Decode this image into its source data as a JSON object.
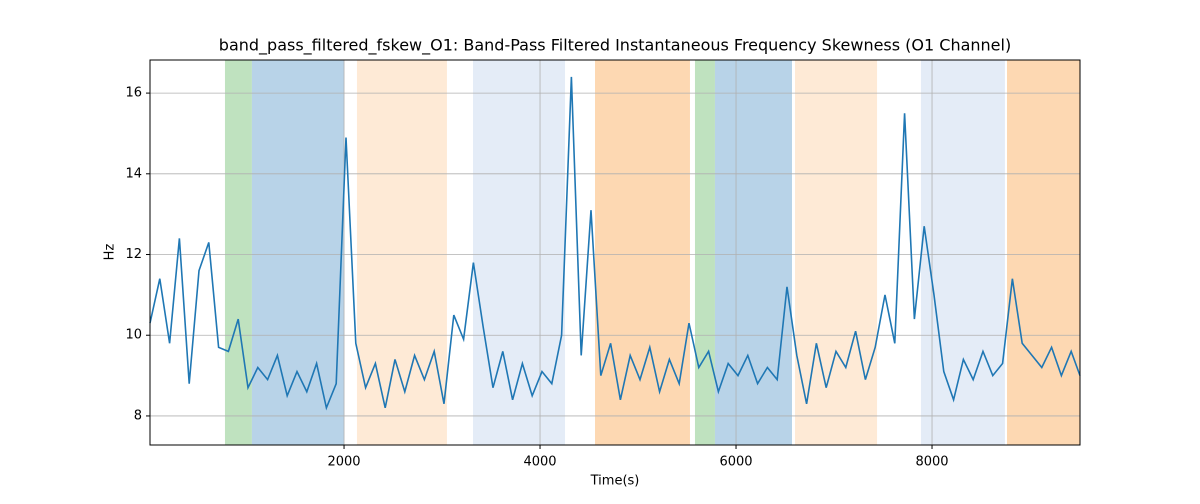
{
  "chart_data": {
    "type": "line",
    "title": "band_pass_filtered_fskew_O1: Band-Pass Filtered Instantaneous Frequency Skewness (O1 Channel)",
    "xlabel": "Time(s)",
    "ylabel": "Hz",
    "xlim": [
      20,
      9510
    ],
    "ylim": [
      7.28,
      16.82
    ],
    "xticks": [
      2000,
      4000,
      6000,
      8000
    ],
    "yticks": [
      8,
      10,
      12,
      14,
      16
    ],
    "grid": true,
    "spans": [
      {
        "start": 785,
        "end": 1060,
        "color": "#bfe2bf"
      },
      {
        "start": 1060,
        "end": 2000,
        "color": "#b8d3e8"
      },
      {
        "start": 2132,
        "end": 3050,
        "color": "#feead6"
      },
      {
        "start": 3316,
        "end": 4255,
        "color": "#e4ecf7"
      },
      {
        "start": 4561,
        "end": 5530,
        "color": "#fdd8b2"
      },
      {
        "start": 5581,
        "end": 5785,
        "color": "#bfe2bf"
      },
      {
        "start": 5785,
        "end": 6571,
        "color": "#b8d3e8"
      },
      {
        "start": 6602,
        "end": 7439,
        "color": "#feead6"
      },
      {
        "start": 7887,
        "end": 8744,
        "color": "#e4ecf7"
      },
      {
        "start": 8765,
        "end": 9510,
        "color": "#fdd8b2"
      }
    ],
    "series": [
      {
        "color": "#1f77b4",
        "x": [
          20,
          120,
          220,
          320,
          420,
          520,
          620,
          720,
          820,
          920,
          1020,
          1120,
          1220,
          1320,
          1420,
          1520,
          1620,
          1720,
          1820,
          1920,
          2020,
          2120,
          2220,
          2320,
          2420,
          2520,
          2620,
          2720,
          2820,
          2920,
          3020,
          3120,
          3220,
          3320,
          3420,
          3520,
          3620,
          3720,
          3820,
          3920,
          4020,
          4120,
          4220,
          4320,
          4420,
          4520,
          4620,
          4720,
          4820,
          4920,
          5020,
          5120,
          5220,
          5320,
          5420,
          5520,
          5620,
          5720,
          5820,
          5920,
          6020,
          6120,
          6220,
          6320,
          6420,
          6520,
          6620,
          6720,
          6820,
          6920,
          7020,
          7120,
          7220,
          7320,
          7420,
          7520,
          7620,
          7720,
          7820,
          7920,
          8020,
          8120,
          8220,
          8320,
          8420,
          8520,
          8620,
          8720,
          8820,
          8920,
          9020,
          9120,
          9220,
          9320,
          9420,
          9510
        ],
        "values": [
          10.3,
          11.4,
          9.8,
          12.4,
          8.8,
          11.6,
          12.3,
          9.7,
          9.6,
          10.4,
          8.7,
          9.2,
          8.9,
          9.5,
          8.5,
          9.1,
          8.6,
          9.3,
          8.2,
          8.8,
          14.9,
          9.8,
          8.7,
          9.3,
          8.2,
          9.4,
          8.6,
          9.5,
          8.9,
          9.6,
          8.3,
          10.5,
          9.9,
          11.8,
          10.2,
          8.7,
          9.6,
          8.4,
          9.3,
          8.5,
          9.1,
          8.8,
          10.0,
          16.4,
          9.5,
          13.1,
          9.0,
          9.8,
          8.4,
          9.5,
          8.9,
          9.7,
          8.6,
          9.4,
          8.8,
          10.3,
          9.2,
          9.6,
          8.6,
          9.3,
          9.0,
          9.5,
          8.8,
          9.2,
          8.9,
          11.2,
          9.5,
          8.3,
          9.8,
          8.7,
          9.6,
          9.2,
          10.1,
          8.9,
          9.7,
          11.0,
          9.8,
          15.5,
          10.4,
          12.7,
          11.0,
          9.1,
          8.4,
          9.4,
          8.9,
          9.6,
          9.0,
          9.3,
          11.4,
          9.8,
          9.5,
          9.2,
          9.7,
          9.0,
          9.6,
          9.0
        ]
      }
    ]
  }
}
